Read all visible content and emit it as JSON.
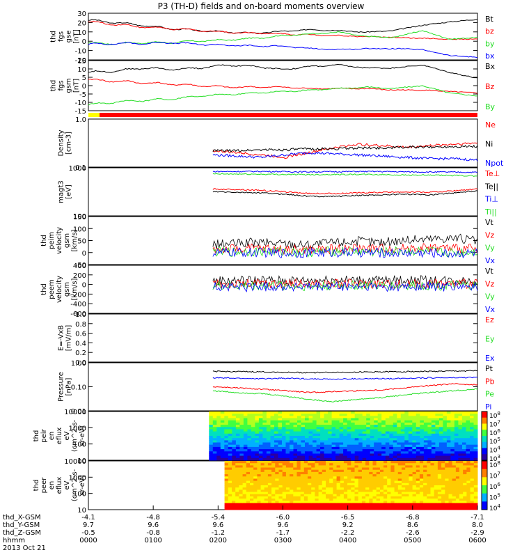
{
  "title": "P3 (TH-D) fields and on-board moments overview",
  "colors": {
    "black": "#000000",
    "red": "#ff0000",
    "green": "#22dd22",
    "blue": "#0000ff",
    "status_red": "#ff0000",
    "status_yellow": "#ffff00"
  },
  "chart_data": [
    {
      "type": "line",
      "id": "p1",
      "ylabel": [
        "thd",
        "fgs",
        "gse",
        "[nT]"
      ],
      "yticks": [
        "30",
        "20",
        "10",
        "0",
        "-10",
        "-20"
      ],
      "ylim": [
        -22,
        32
      ],
      "series": [
        {
          "name": "Bt",
          "color": "black",
          "values": [
            24,
            21,
            18,
            14,
            12,
            10,
            9,
            11,
            13,
            12,
            10,
            12,
            18,
            22,
            25
          ]
        },
        {
          "name": "bz",
          "color": "red",
          "values": [
            22,
            19,
            16,
            14,
            12,
            10,
            9,
            8,
            7,
            6,
            5,
            4,
            3,
            2,
            2
          ]
        },
        {
          "name": "by",
          "color": "green",
          "values": [
            -3,
            -3,
            -2,
            -2,
            0,
            1,
            3,
            6,
            8,
            10,
            5,
            4,
            12,
            2,
            4
          ]
        },
        {
          "name": "bx",
          "color": "blue",
          "values": [
            -4,
            -3,
            -3,
            -2,
            -4,
            -5,
            -6,
            -6,
            -9,
            -10,
            -9,
            -9,
            -10,
            -17,
            -19
          ]
        }
      ]
    },
    {
      "type": "line",
      "id": "p2",
      "ylabel": [
        "thd",
        "fgs",
        "gsm",
        "[nT]"
      ],
      "yticks": [
        "15",
        "10",
        "5",
        "0",
        "-5",
        "-10",
        "-15"
      ],
      "ylim": [
        -17,
        17
      ],
      "series": [
        {
          "name": "Bx",
          "color": "black",
          "values": [
            9,
            10,
            12,
            11,
            12,
            14,
            13,
            11,
            13,
            14,
            12,
            12,
            14,
            9,
            5
          ]
        },
        {
          "name": "Bz",
          "color": "red",
          "values": [
            4,
            3,
            2,
            1,
            0,
            -1,
            -1,
            -1,
            -2,
            -2,
            -2,
            -3,
            -3,
            -4,
            -5
          ]
        },
        {
          "name": "By",
          "color": "green",
          "values": [
            -13,
            -11,
            -10,
            -9,
            -7,
            -6,
            -5,
            -4,
            -3,
            -2,
            -1,
            -2,
            0,
            -5,
            -7
          ]
        }
      ]
    },
    {
      "type": "line",
      "id": "p3",
      "ylabel": [
        "Density",
        "[cm-3]"
      ],
      "yscale": "log",
      "yticks": [
        "1.0",
        "0.1"
      ],
      "ylim": [
        0.1,
        1.0
      ],
      "series": [
        {
          "name": "Ne",
          "color": "red",
          "values": [
            0.22,
            0.2,
            0.18,
            0.16,
            0.2,
            0.25,
            0.3,
            0.28,
            0.26,
            0.28,
            0.3,
            0.32
          ]
        },
        {
          "name": "Ni",
          "color": "black",
          "values": [
            0.22,
            0.22,
            0.23,
            0.23,
            0.24,
            0.24,
            0.25,
            0.25,
            0.26,
            0.26,
            0.27,
            0.27
          ]
        },
        {
          "name": "Npot",
          "color": "blue",
          "values": [
            0.18,
            0.17,
            0.16,
            0.18,
            0.2,
            0.19,
            0.18,
            0.17,
            0.16,
            0.15,
            0.15,
            0.14
          ]
        }
      ]
    },
    {
      "type": "line",
      "id": "p4",
      "ylabel": [
        "magt3",
        "[eV]"
      ],
      "yscale": "log",
      "yticks": [
        "1000",
        "100"
      ],
      "ylim": [
        100,
        10000
      ],
      "series": [
        {
          "name": "Te⊥",
          "color": "red",
          "values": [
            1300,
            1250,
            1150,
            1000,
            850,
            850,
            900,
            950,
            1000,
            950,
            1100,
            1300
          ]
        },
        {
          "name": "Te||",
          "color": "black",
          "values": [
            1000,
            950,
            900,
            800,
            650,
            650,
            700,
            750,
            800,
            750,
            900,
            1100
          ]
        },
        {
          "name": "Ti⊥",
          "color": "blue",
          "values": [
            7000,
            7000,
            7100,
            6900,
            6800,
            6900,
            7000,
            7000,
            6800,
            6700,
            6600,
            6500
          ]
        },
        {
          "name": "Ti||",
          "color": "green",
          "values": [
            5500,
            5500,
            5400,
            5300,
            5200,
            5300,
            5300,
            5200,
            5000,
            4900,
            4800,
            4600
          ]
        }
      ]
    },
    {
      "type": "line",
      "id": "p5",
      "ylabel": [
        "thd",
        "peim",
        "velocity",
        "gsm",
        "[km/s]"
      ],
      "yticks": [
        "150",
        "100",
        "50",
        "0",
        "-50"
      ],
      "ylim": [
        -55,
        150
      ],
      "series": [
        {
          "name": "Vt",
          "color": "black",
          "values": [
            30,
            35,
            40,
            35,
            30,
            40,
            45,
            40,
            50,
            55,
            60,
            45
          ]
        },
        {
          "name": "Vz",
          "color": "red",
          "values": [
            10,
            12,
            14,
            10,
            8,
            12,
            15,
            14,
            16,
            18,
            14,
            12
          ]
        },
        {
          "name": "Vy",
          "color": "green",
          "values": [
            0,
            -2,
            2,
            0,
            -3,
            2,
            0,
            -2,
            3,
            0,
            -5,
            2
          ]
        },
        {
          "name": "Vx",
          "color": "blue",
          "values": [
            -5,
            -3,
            -4,
            -6,
            -5,
            -4,
            -3,
            -5,
            -4,
            -6,
            -8,
            -5
          ]
        }
      ]
    },
    {
      "type": "line",
      "id": "p6",
      "ylabel": [
        "thd",
        "peem",
        "velocity",
        "gsm",
        "[km/s]"
      ],
      "yticks": [
        "400",
        "200",
        "0",
        "-200",
        "-400",
        "-600"
      ],
      "ylim": [
        -620,
        420
      ],
      "series": [
        {
          "name": "Vt",
          "color": "black",
          "values": [
            80,
            90,
            100,
            85,
            90,
            110,
            95,
            90,
            100,
            95,
            90,
            85
          ]
        },
        {
          "name": "Vz",
          "color": "red",
          "values": [
            20,
            15,
            25,
            20,
            15,
            20,
            25,
            20,
            15,
            20,
            25,
            20
          ]
        },
        {
          "name": "Vy",
          "color": "green",
          "values": [
            -20,
            -25,
            -15,
            -20,
            -30,
            -20,
            -15,
            -25,
            -20,
            -15,
            -20,
            -25
          ]
        },
        {
          "name": "Vx",
          "color": "blue",
          "values": [
            -40,
            -50,
            -45,
            -40,
            -55,
            -45,
            -40,
            -50,
            -45,
            -40,
            -45,
            -50
          ]
        }
      ]
    },
    {
      "type": "line",
      "id": "p7",
      "ylabel": [
        "E=-VxB",
        "[mV/m]"
      ],
      "yticks": [
        "1.0",
        "0.8",
        "0.6",
        "0.4",
        "0.2",
        "0.0"
      ],
      "ylim": [
        0,
        1.0
      ],
      "series": [
        {
          "name": "Ez",
          "color": "red",
          "values": []
        },
        {
          "name": "Ey",
          "color": "green",
          "values": []
        },
        {
          "name": "Ex",
          "color": "blue",
          "values": []
        }
      ]
    },
    {
      "type": "line",
      "id": "p8",
      "ylabel": [
        "Pressure",
        "[nPa]"
      ],
      "yscale": "log",
      "yticks": [
        "1.00",
        "0.10",
        "0.01"
      ],
      "ylim": [
        0.008,
        1.0
      ],
      "series": [
        {
          "name": "Pt",
          "color": "black",
          "values": [
            0.42,
            0.41,
            0.4,
            0.38,
            0.37,
            0.38,
            0.39,
            0.4,
            0.41,
            0.42,
            0.43,
            0.45
          ]
        },
        {
          "name": "Pb",
          "color": "red",
          "values": [
            0.09,
            0.08,
            0.07,
            0.06,
            0.05,
            0.055,
            0.06,
            0.065,
            0.08,
            0.1,
            0.12,
            0.11
          ]
        },
        {
          "name": "Pe",
          "color": "green",
          "values": [
            0.06,
            0.05,
            0.045,
            0.035,
            0.025,
            0.02,
            0.025,
            0.03,
            0.04,
            0.05,
            0.06,
            0.07
          ]
        },
        {
          "name": "Pi",
          "color": "blue",
          "values": [
            0.22,
            0.21,
            0.2,
            0.21,
            0.2,
            0.19,
            0.2,
            0.2,
            0.21,
            0.22,
            0.22,
            0.23
          ]
        }
      ]
    },
    {
      "type": "heatmap",
      "id": "p9",
      "ylabel": [
        "thd",
        "peir",
        "en",
        "eflux",
        "eV",
        "(cm^2-s-",
        "sr-eV)"
      ],
      "yticks": [
        "10000",
        "1000",
        "100",
        "10"
      ],
      "colorbar": [
        "10^8",
        "10^7",
        "10^6",
        "10^5",
        "10^4",
        "10^3"
      ]
    },
    {
      "type": "heatmap",
      "id": "p10",
      "ylabel": [
        "thd",
        "peer",
        "en",
        "eflux",
        "eV",
        "(cm^2-s-",
        "sr-eV)"
      ],
      "yticks": [
        "10000",
        "1000",
        "100",
        "10"
      ],
      "colorbar": [
        "10^8",
        "10^7",
        "10^6",
        "10^5",
        "10^4"
      ]
    }
  ],
  "xaxis": {
    "rows": [
      {
        "label": "thd_X-GSM",
        "values": [
          "-4.1",
          "-4.8",
          "-5.4",
          "-6.0",
          "-6.5",
          "-6.8",
          "-7.1"
        ]
      },
      {
        "label": "thd_Y-GSM",
        "values": [
          "9.7",
          "9.6",
          "9.6",
          "9.6",
          "9.2",
          "8.6",
          "8.0"
        ]
      },
      {
        "label": "thd_Z-GSM",
        "values": [
          "-0.5",
          "-0.8",
          "-1.2",
          "-1.7",
          "-2.2",
          "-2.6",
          "-2.9"
        ]
      },
      {
        "label": "hhmm",
        "values": [
          "0000",
          "0100",
          "0200",
          "0300",
          "0400",
          "0500",
          "0600"
        ]
      }
    ],
    "date": "2013 Oct 21"
  }
}
